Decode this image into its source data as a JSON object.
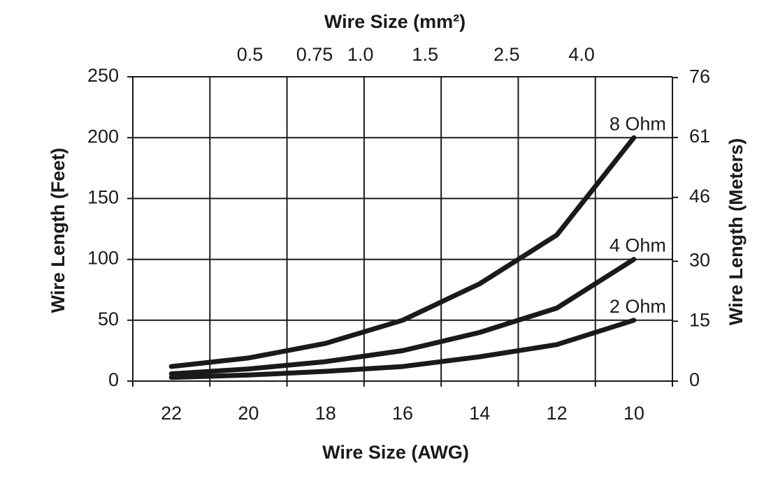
{
  "chart_data": {
    "type": "line",
    "title": "Wire Size (mm²)",
    "x_label": "Wire Size (AWG)",
    "y_label": "Wire Length (Feet)",
    "y2_label": "Wire Length (Meters)",
    "categories": [
      "22",
      "20",
      "18",
      "16",
      "14",
      "12",
      "10"
    ],
    "series": [
      {
        "name": "8 Ohm",
        "color": "#1a1a1a",
        "values": [
          12,
          19,
          31,
          50,
          80,
          120,
          200
        ]
      },
      {
        "name": "4 Ohm",
        "color": "#1a1a1a",
        "values": [
          6,
          10,
          16,
          25,
          40,
          60,
          100
        ]
      },
      {
        "name": "2 Ohm",
        "color": "#1a1a1a",
        "values": [
          3,
          5,
          8,
          12,
          20,
          30,
          50
        ]
      }
    ],
    "ylim": [
      0,
      250
    ],
    "yticks": [
      0,
      50,
      100,
      150,
      200,
      250
    ],
    "y2lim": [
      0,
      76.2
    ],
    "y2ticks": [
      0,
      15,
      30,
      46,
      61,
      76
    ],
    "x2scale": "log",
    "x2lim": [
      0.24,
      7.07
    ],
    "x2ticks": [
      0.5,
      0.75,
      {
        "value": 1,
        "label": "1.0"
      },
      1.5,
      2.5,
      {
        "value": 4,
        "label": "4.0"
      }
    ],
    "grid": true
  }
}
